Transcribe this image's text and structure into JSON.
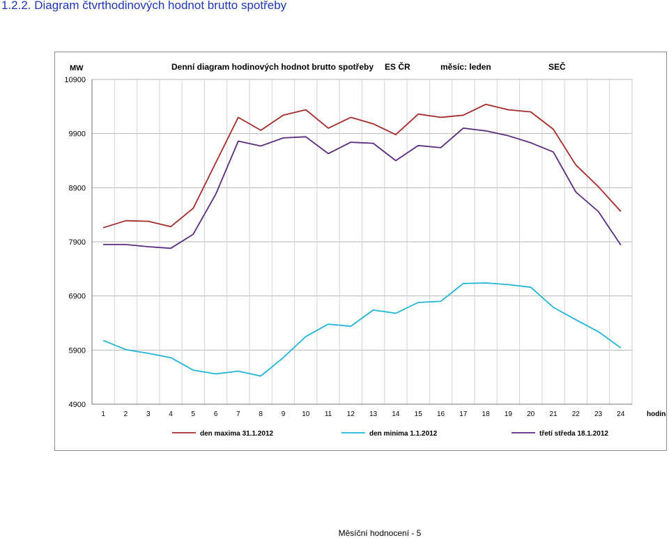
{
  "heading": "1.2.2. Diagram čtvrthodinových hodnot brutto spotřeby",
  "footer": "Měsíční hodnocení - 5",
  "chart_data": {
    "type": "line",
    "title": "Denní diagram hodinových hodnot brutto spotřeby",
    "title_parts": [
      "ES ČR",
      "měsíc: leden",
      "SEČ"
    ],
    "ylabel": "MW",
    "xlabel": "hodina",
    "ylim": [
      4900,
      10900
    ],
    "yticks": [
      10900,
      9900,
      8900,
      7900,
      6900,
      5900,
      4900
    ],
    "x": [
      1,
      2,
      3,
      4,
      5,
      6,
      7,
      8,
      9,
      10,
      11,
      12,
      13,
      14,
      15,
      16,
      17,
      18,
      19,
      20,
      21,
      22,
      23,
      24
    ],
    "grid": true,
    "legend_position": "bottom",
    "series": [
      {
        "name": "den maxima  31.1.2012",
        "color": "#a52a2a",
        "values": [
          8160,
          8290,
          8280,
          8180,
          8520,
          9360,
          10200,
          9960,
          10240,
          10340,
          10000,
          10200,
          10080,
          9880,
          10260,
          10200,
          10240,
          10440,
          10340,
          10300,
          9980,
          9320,
          8920,
          8460
        ]
      },
      {
        "name": "den minima  1.1.2012",
        "color": "#20b4d8",
        "values": [
          6080,
          5910,
          5840,
          5760,
          5530,
          5460,
          5510,
          5420,
          5760,
          6150,
          6380,
          6340,
          6640,
          6580,
          6780,
          6800,
          7130,
          7140,
          7110,
          7060,
          6690,
          6460,
          6240,
          5940
        ]
      },
      {
        "name": "třetí středa  18.1.2012",
        "color": "#5a2a7e",
        "values": [
          7850,
          7850,
          7810,
          7780,
          8040,
          8780,
          9760,
          9670,
          9820,
          9840,
          9530,
          9740,
          9720,
          9400,
          9680,
          9640,
          10000,
          9950,
          9860,
          9730,
          9560,
          8820,
          8460,
          7840
        ]
      }
    ]
  }
}
